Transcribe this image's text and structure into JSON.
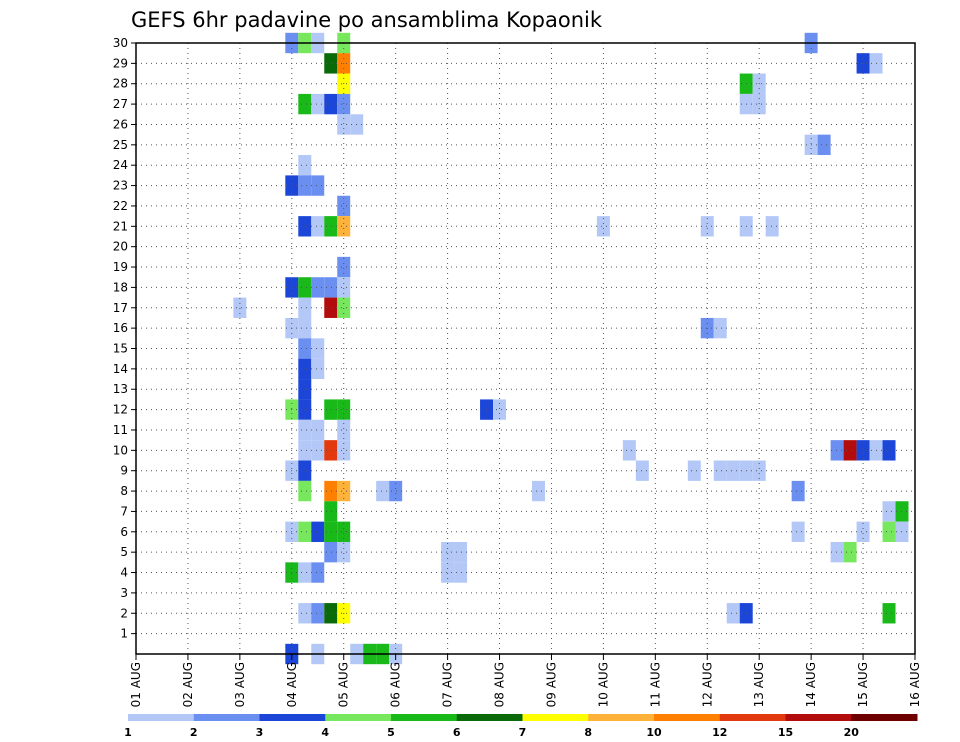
{
  "chart_data": {
    "type": "heatmap",
    "title": "GEFS 6hr padavine po ansamblima Kopaonik",
    "x_labels": [
      "01 AUG",
      "02 AUG",
      "03 AUG",
      "04 AUG",
      "05 AUG",
      "06 AUG",
      "07 AUG",
      "08 AUG",
      "09 AUG",
      "10 AUG",
      "11 AUG",
      "12 AUG",
      "13 AUG",
      "14 AUG",
      "15 AUG",
      "16 AUG"
    ],
    "y_labels": [
      "1",
      "2",
      "3",
      "4",
      "5",
      "6",
      "7",
      "8",
      "9",
      "10",
      "11",
      "12",
      "13",
      "14",
      "15",
      "16",
      "17",
      "18",
      "19",
      "20",
      "21",
      "22",
      "23",
      "24",
      "25",
      "26",
      "27",
      "28",
      "29",
      "30"
    ],
    "xlim": [
      0,
      15
    ],
    "ylim": [
      0,
      30
    ],
    "grid": true,
    "legend_placement": "bottom",
    "legend": {
      "thresholds": [
        "1",
        "2",
        "3",
        "4",
        "5",
        "6",
        "7",
        "8",
        "10",
        "12",
        "15",
        "20"
      ],
      "colors": [
        "#b3c8f7",
        "#6b8ff0",
        "#1b46d8",
        "#77e85d",
        "#18b918",
        "#0a6a0a",
        "#ffff00",
        "#ffb23a",
        "#ff7f00",
        "#e23a0e",
        "#b20c0c",
        "#6e0000"
      ]
    },
    "cells_note": "each cell: [time in days since 01 AUG, member, color class index]",
    "cells": [
      [
        3.0,
        30,
        1
      ],
      [
        3.25,
        30,
        3
      ],
      [
        3.5,
        30,
        0
      ],
      [
        4.0,
        30,
        3
      ],
      [
        13.0,
        30,
        1
      ],
      [
        3.75,
        29,
        5
      ],
      [
        4.0,
        29,
        8
      ],
      [
        14.0,
        29,
        2
      ],
      [
        14.25,
        29,
        0
      ],
      [
        4.0,
        28,
        6
      ],
      [
        11.75,
        28,
        4
      ],
      [
        12.0,
        28,
        0
      ],
      [
        3.25,
        27,
        4
      ],
      [
        3.5,
        27,
        0
      ],
      [
        3.75,
        27,
        2
      ],
      [
        4.0,
        27,
        1
      ],
      [
        11.75,
        27,
        0
      ],
      [
        12.0,
        27,
        0
      ],
      [
        4.0,
        26,
        0
      ],
      [
        4.25,
        26,
        0
      ],
      [
        13.0,
        25,
        0
      ],
      [
        13.25,
        25,
        1
      ],
      [
        3.25,
        24,
        0
      ],
      [
        3.0,
        23,
        2
      ],
      [
        3.25,
        23,
        1
      ],
      [
        3.5,
        23,
        1
      ],
      [
        4.0,
        22,
        1
      ],
      [
        3.25,
        21,
        2
      ],
      [
        3.5,
        21,
        0
      ],
      [
        3.75,
        21,
        4
      ],
      [
        4.0,
        21,
        7
      ],
      [
        9.0,
        21,
        0
      ],
      [
        11.0,
        21,
        0
      ],
      [
        11.75,
        21,
        0
      ],
      [
        12.25,
        21,
        0
      ],
      [
        4.0,
        19,
        1
      ],
      [
        3.0,
        18,
        2
      ],
      [
        3.25,
        18,
        4
      ],
      [
        3.5,
        18,
        1
      ],
      [
        3.75,
        18,
        1
      ],
      [
        4.0,
        18,
        0
      ],
      [
        2.0,
        17,
        0
      ],
      [
        3.25,
        17,
        0
      ],
      [
        3.75,
        17,
        10
      ],
      [
        4.0,
        17,
        3
      ],
      [
        3.0,
        16,
        0
      ],
      [
        3.25,
        16,
        0
      ],
      [
        11.0,
        16,
        1
      ],
      [
        11.25,
        16,
        0
      ],
      [
        3.25,
        15,
        1
      ],
      [
        3.5,
        15,
        0
      ],
      [
        3.25,
        14,
        2
      ],
      [
        3.5,
        14,
        0
      ],
      [
        3.25,
        13,
        2
      ],
      [
        3.0,
        12,
        3
      ],
      [
        3.25,
        12,
        2
      ],
      [
        3.75,
        12,
        4
      ],
      [
        4.0,
        12,
        4
      ],
      [
        6.75,
        12,
        2
      ],
      [
        7.0,
        12,
        0
      ],
      [
        3.25,
        11,
        0
      ],
      [
        3.5,
        11,
        0
      ],
      [
        4.0,
        11,
        0
      ],
      [
        3.25,
        10,
        0
      ],
      [
        3.5,
        10,
        0
      ],
      [
        3.75,
        10,
        9
      ],
      [
        4.0,
        10,
        0
      ],
      [
        9.5,
        10,
        0
      ],
      [
        13.5,
        10,
        1
      ],
      [
        13.75,
        10,
        10
      ],
      [
        14.0,
        10,
        2
      ],
      [
        14.25,
        10,
        0
      ],
      [
        14.5,
        10,
        2
      ],
      [
        3.0,
        9,
        0
      ],
      [
        3.25,
        9,
        2
      ],
      [
        9.75,
        9,
        0
      ],
      [
        10.75,
        9,
        0
      ],
      [
        11.25,
        9,
        0
      ],
      [
        11.5,
        9,
        0
      ],
      [
        11.75,
        9,
        0
      ],
      [
        12.0,
        9,
        0
      ],
      [
        3.25,
        8,
        3
      ],
      [
        3.75,
        8,
        8
      ],
      [
        4.0,
        8,
        7
      ],
      [
        4.75,
        8,
        0
      ],
      [
        5.0,
        8,
        1
      ],
      [
        7.75,
        8,
        0
      ],
      [
        12.75,
        8,
        1
      ],
      [
        3.75,
        7,
        4
      ],
      [
        14.5,
        7,
        0
      ],
      [
        14.75,
        7,
        4
      ],
      [
        3.0,
        6,
        0
      ],
      [
        3.25,
        6,
        3
      ],
      [
        3.5,
        6,
        2
      ],
      [
        3.75,
        6,
        4
      ],
      [
        4.0,
        6,
        4
      ],
      [
        12.75,
        6,
        0
      ],
      [
        14.0,
        6,
        0
      ],
      [
        14.5,
        6,
        3
      ],
      [
        14.75,
        6,
        0
      ],
      [
        3.75,
        5,
        1
      ],
      [
        4.0,
        5,
        0
      ],
      [
        6.0,
        5,
        0
      ],
      [
        6.25,
        5,
        0
      ],
      [
        13.5,
        5,
        0
      ],
      [
        13.75,
        5,
        3
      ],
      [
        3.0,
        4,
        4
      ],
      [
        3.25,
        4,
        0
      ],
      [
        3.5,
        4,
        1
      ],
      [
        6.0,
        4,
        0
      ],
      [
        6.25,
        4,
        0
      ],
      [
        3.25,
        2,
        0
      ],
      [
        3.5,
        2,
        1
      ],
      [
        3.75,
        2,
        5
      ],
      [
        4.0,
        2,
        6
      ],
      [
        11.5,
        2,
        0
      ],
      [
        11.75,
        2,
        2
      ],
      [
        14.5,
        2,
        4
      ],
      [
        3.0,
        0,
        2
      ],
      [
        3.5,
        0,
        0
      ],
      [
        4.25,
        0,
        0
      ],
      [
        4.5,
        0,
        4
      ],
      [
        4.75,
        0,
        4
      ],
      [
        5.0,
        0,
        0
      ]
    ]
  }
}
